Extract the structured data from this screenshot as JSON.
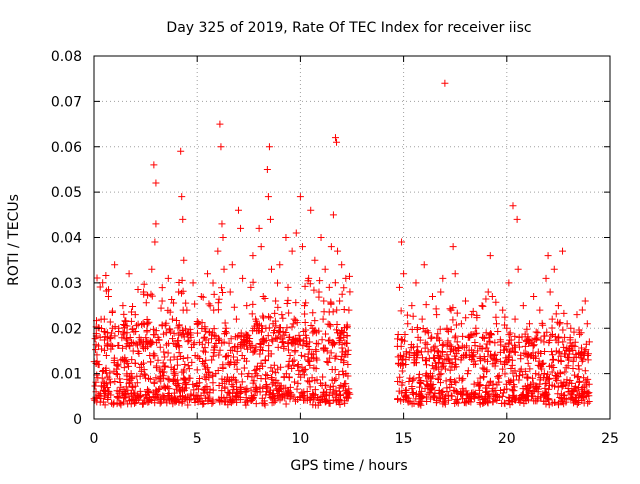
{
  "colors": {
    "series": "#ff0000",
    "grid": "#a0a0a0",
    "axis": "#000000",
    "background": "#ffffff"
  },
  "chart_data": {
    "type": "scatter",
    "title": "Day 325 of 2019, Rate Of TEC Index for receiver iisc",
    "xlabel": "GPS time / hours",
    "ylabel": "ROTI / TECUs",
    "xlim": [
      0,
      25
    ],
    "ylim": [
      0,
      0.08
    ],
    "xticks": [
      0,
      5,
      10,
      15,
      20,
      25
    ],
    "xtick_labels": [
      "0",
      "5",
      "10",
      "15",
      "20",
      "25"
    ],
    "yticks": [
      0,
      0.01,
      0.02,
      0.03,
      0.04,
      0.05,
      0.06,
      0.07,
      0.08
    ],
    "ytick_labels": [
      "0",
      "0.01",
      "0.02",
      "0.03",
      "0.04",
      "0.05",
      "0.06",
      "0.07",
      "0.08"
    ],
    "grid": true,
    "marker": "+",
    "series": [
      {
        "name": "ROTI",
        "points": [
          [
            0.1,
            0.006
          ],
          [
            0.2,
            0.012
          ],
          [
            0.3,
            0.018
          ],
          [
            0.4,
            0.009
          ],
          [
            0.5,
            0.022
          ],
          [
            0.6,
            0.014
          ],
          [
            0.7,
            0.027
          ],
          [
            0.8,
            0.008
          ],
          [
            0.9,
            0.016
          ],
          [
            1.0,
            0.034
          ],
          [
            1.1,
            0.011
          ],
          [
            1.2,
            0.02
          ],
          [
            1.3,
            0.007
          ],
          [
            1.4,
            0.025
          ],
          [
            1.5,
            0.013
          ],
          [
            1.6,
            0.019
          ],
          [
            1.7,
            0.032
          ],
          [
            1.8,
            0.01
          ],
          [
            1.9,
            0.015
          ],
          [
            2.0,
            0.023
          ],
          [
            2.1,
            0.008
          ],
          [
            2.2,
            0.017
          ],
          [
            2.3,
            0.012
          ],
          [
            2.4,
            0.028
          ],
          [
            2.5,
            0.009
          ],
          [
            2.6,
            0.021
          ],
          [
            2.7,
            0.014
          ],
          [
            2.8,
            0.033
          ],
          [
            2.9,
            0.056
          ],
          [
            3.0,
            0.052
          ],
          [
            3.0,
            0.043
          ],
          [
            2.95,
            0.039
          ],
          [
            3.1,
            0.018
          ],
          [
            3.2,
            0.011
          ],
          [
            3.3,
            0.026
          ],
          [
            3.4,
            0.007
          ],
          [
            3.5,
            0.019
          ],
          [
            3.6,
            0.031
          ],
          [
            3.7,
            0.013
          ],
          [
            3.8,
            0.022
          ],
          [
            3.9,
            0.01
          ],
          [
            4.0,
            0.016
          ],
          [
            4.1,
            0.028
          ],
          [
            4.2,
            0.059
          ],
          [
            4.25,
            0.049
          ],
          [
            4.3,
            0.044
          ],
          [
            4.35,
            0.035
          ],
          [
            4.4,
            0.012
          ],
          [
            4.5,
            0.024
          ],
          [
            4.6,
            0.009
          ],
          [
            4.7,
            0.018
          ],
          [
            4.8,
            0.03
          ],
          [
            4.9,
            0.014
          ],
          [
            5.0,
            0.021
          ],
          [
            5.1,
            0.008
          ],
          [
            5.2,
            0.027
          ],
          [
            5.3,
            0.015
          ],
          [
            5.4,
            0.011
          ],
          [
            5.5,
            0.032
          ],
          [
            5.6,
            0.019
          ],
          [
            5.7,
            0.013
          ],
          [
            5.8,
            0.024
          ],
          [
            5.9,
            0.01
          ],
          [
            6.0,
            0.037
          ],
          [
            6.1,
            0.065
          ],
          [
            6.15,
            0.06
          ],
          [
            6.2,
            0.043
          ],
          [
            6.25,
            0.04
          ],
          [
            6.3,
            0.033
          ],
          [
            6.4,
            0.02
          ],
          [
            6.5,
            0.014
          ],
          [
            6.6,
            0.028
          ],
          [
            6.7,
            0.034
          ],
          [
            6.8,
            0.012
          ],
          [
            6.9,
            0.022
          ],
          [
            7.0,
            0.046
          ],
          [
            7.1,
            0.042
          ],
          [
            7.2,
            0.031
          ],
          [
            7.3,
            0.017
          ],
          [
            7.4,
            0.025
          ],
          [
            7.5,
            0.01
          ],
          [
            7.6,
            0.029
          ],
          [
            7.7,
            0.036
          ],
          [
            7.8,
            0.015
          ],
          [
            7.9,
            0.021
          ],
          [
            8.0,
            0.042
          ],
          [
            8.1,
            0.038
          ],
          [
            8.2,
            0.027
          ],
          [
            8.3,
            0.013
          ],
          [
            8.4,
            0.055
          ],
          [
            8.45,
            0.049
          ],
          [
            8.5,
            0.06
          ],
          [
            8.55,
            0.044
          ],
          [
            8.6,
            0.033
          ],
          [
            8.7,
            0.019
          ],
          [
            8.8,
            0.026
          ],
          [
            8.9,
            0.011
          ],
          [
            9.0,
            0.034
          ],
          [
            9.1,
            0.023
          ],
          [
            9.2,
            0.016
          ],
          [
            9.3,
            0.04
          ],
          [
            9.4,
            0.029
          ],
          [
            9.5,
            0.014
          ],
          [
            9.6,
            0.037
          ],
          [
            9.7,
            0.022
          ],
          [
            9.8,
            0.041
          ],
          [
            9.9,
            0.012
          ],
          [
            10.0,
            0.049
          ],
          [
            10.1,
            0.038
          ],
          [
            10.2,
            0.025
          ],
          [
            10.3,
            0.017
          ],
          [
            10.4,
            0.031
          ],
          [
            10.5,
            0.046
          ],
          [
            10.6,
            0.02
          ],
          [
            10.7,
            0.035
          ],
          [
            10.8,
            0.013
          ],
          [
            10.9,
            0.028
          ],
          [
            11.0,
            0.04
          ],
          [
            11.1,
            0.022
          ],
          [
            11.2,
            0.033
          ],
          [
            11.3,
            0.015
          ],
          [
            11.4,
            0.029
          ],
          [
            11.5,
            0.038
          ],
          [
            11.6,
            0.045
          ],
          [
            11.7,
            0.062
          ],
          [
            11.75,
            0.061
          ],
          [
            11.8,
            0.037
          ],
          [
            11.9,
            0.026
          ],
          [
            12.0,
            0.034
          ],
          [
            12.1,
            0.018
          ],
          [
            12.2,
            0.031
          ],
          [
            12.3,
            0.012
          ],
          [
            12.35,
            0.024
          ],
          [
            14.7,
            0.016
          ],
          [
            14.8,
            0.029
          ],
          [
            14.9,
            0.039
          ],
          [
            15.0,
            0.032
          ],
          [
            15.1,
            0.012
          ],
          [
            15.2,
            0.021
          ],
          [
            15.3,
            0.009
          ],
          [
            15.4,
            0.025
          ],
          [
            15.5,
            0.014
          ],
          [
            15.6,
            0.03
          ],
          [
            15.7,
            0.018
          ],
          [
            15.8,
            0.008
          ],
          [
            15.9,
            0.022
          ],
          [
            16.0,
            0.034
          ],
          [
            16.1,
            0.013
          ],
          [
            16.2,
            0.019
          ],
          [
            16.3,
            0.01
          ],
          [
            16.4,
            0.027
          ],
          [
            16.5,
            0.015
          ],
          [
            16.6,
            0.023
          ],
          [
            16.7,
            0.011
          ],
          [
            16.8,
            0.028
          ],
          [
            16.9,
            0.031
          ],
          [
            17.0,
            0.074
          ],
          [
            17.1,
            0.02
          ],
          [
            17.2,
            0.013
          ],
          [
            17.3,
            0.024
          ],
          [
            17.4,
            0.038
          ],
          [
            17.5,
            0.032
          ],
          [
            17.6,
            0.017
          ],
          [
            17.7,
            0.009
          ],
          [
            17.8,
            0.021
          ],
          [
            17.9,
            0.014
          ],
          [
            18.0,
            0.026
          ],
          [
            18.1,
            0.01
          ],
          [
            18.2,
            0.018
          ],
          [
            18.3,
            0.023
          ],
          [
            18.4,
            0.012
          ],
          [
            18.5,
            0.02
          ],
          [
            18.6,
            0.008
          ],
          [
            18.7,
            0.016
          ],
          [
            18.8,
            0.025
          ],
          [
            18.9,
            0.011
          ],
          [
            19.0,
            0.019
          ],
          [
            19.1,
            0.028
          ],
          [
            19.2,
            0.036
          ],
          [
            19.3,
            0.027
          ],
          [
            19.4,
            0.014
          ],
          [
            19.5,
            0.021
          ],
          [
            19.6,
            0.009
          ],
          [
            19.7,
            0.017
          ],
          [
            19.8,
            0.024
          ],
          [
            19.9,
            0.012
          ],
          [
            20.0,
            0.02
          ],
          [
            20.1,
            0.03
          ],
          [
            20.2,
            0.015
          ],
          [
            20.3,
            0.047
          ],
          [
            20.4,
            0.022
          ],
          [
            20.5,
            0.044
          ],
          [
            20.55,
            0.033
          ],
          [
            20.6,
            0.018
          ],
          [
            20.7,
            0.011
          ],
          [
            20.8,
            0.025
          ],
          [
            20.9,
            0.016
          ],
          [
            21.0,
            0.009
          ],
          [
            21.1,
            0.021
          ],
          [
            21.2,
            0.014
          ],
          [
            21.3,
            0.027
          ],
          [
            21.4,
            0.01
          ],
          [
            21.5,
            0.019
          ],
          [
            21.6,
            0.024
          ],
          [
            21.7,
            0.012
          ],
          [
            21.8,
            0.017
          ],
          [
            21.9,
            0.031
          ],
          [
            22.0,
            0.036
          ],
          [
            22.1,
            0.028
          ],
          [
            22.2,
            0.022
          ],
          [
            22.3,
            0.033
          ],
          [
            22.4,
            0.015
          ],
          [
            22.5,
            0.025
          ],
          [
            22.6,
            0.01
          ],
          [
            22.7,
            0.037
          ],
          [
            22.8,
            0.018
          ],
          [
            22.9,
            0.008
          ],
          [
            23.0,
            0.013
          ],
          [
            23.1,
            0.02
          ],
          [
            23.2,
            0.006
          ],
          [
            23.3,
            0.016
          ],
          [
            23.4,
            0.023
          ],
          [
            23.5,
            0.011
          ],
          [
            23.6,
            0.019
          ],
          [
            23.7,
            0.014
          ],
          [
            23.8,
            0.026
          ],
          [
            23.9,
            0.021
          ],
          [
            24.0,
            0.017
          ]
        ],
        "background_bands": [
          {
            "x_range": [
              0,
              12.4
            ],
            "y_range": [
              0.003,
              0.02
            ],
            "count": 900
          },
          {
            "x_range": [
              0,
              12.4
            ],
            "y_range": [
              0.015,
              0.03
            ],
            "count": 260
          },
          {
            "x_range": [
              14.7,
              24.0
            ],
            "y_range": [
              0.003,
              0.018
            ],
            "count": 650
          },
          {
            "x_range": [
              14.7,
              24.0
            ],
            "y_range": [
              0.012,
              0.025
            ],
            "count": 160
          }
        ]
      }
    ]
  }
}
